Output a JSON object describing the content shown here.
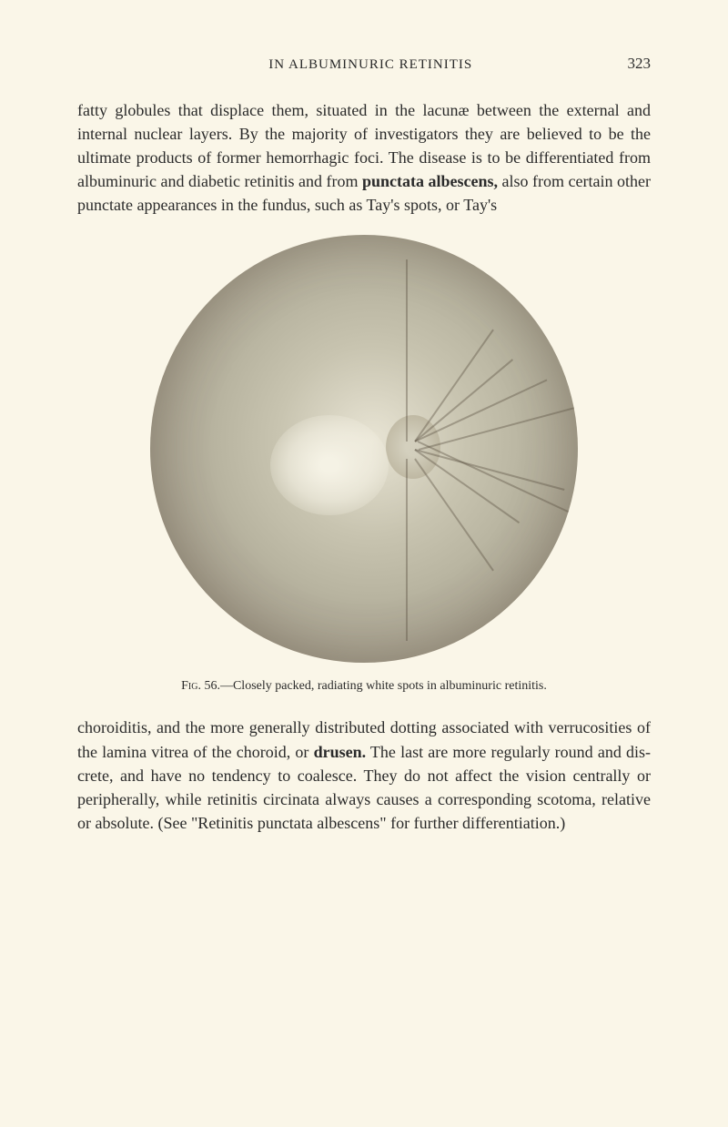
{
  "header": {
    "running_title": "IN ALBUMINURIC RETINITIS",
    "page_number": "323"
  },
  "paragraph1": {
    "text": "fatty globules that displace them, situated in the lacunæ between the external and internal nuclear layers. By the majority of investigators they are believed to be the ultimate products of former hemorrhagic foci. The disease is to be differentiated from albuminuric and diabetic retinitis and from ",
    "bold1": "punctata albescens,",
    "text2": " also from certain other punctate appearances in the fundus, such as Tay's spots, or Tay's"
  },
  "figure": {
    "label": "Fig.",
    "number": "56.",
    "caption": "—Closely packed, radiating white spots in albuminuric retinitis."
  },
  "paragraph2": {
    "text1": "choroiditis, and the more generally distributed dotting asso­ciated with verrucosities of the lamina vitrea of the choroid, or ",
    "bold1": "drusen.",
    "text2": " The last are more regularly round and dis­crete, and have no tendency to coalesce. They do not affect the vision centrally or peripherally, while retinitis circinata always causes a corresponding scotoma, relative or absolute. (See \"Retinitis punctata albescens\" for further differentiation.)"
  }
}
